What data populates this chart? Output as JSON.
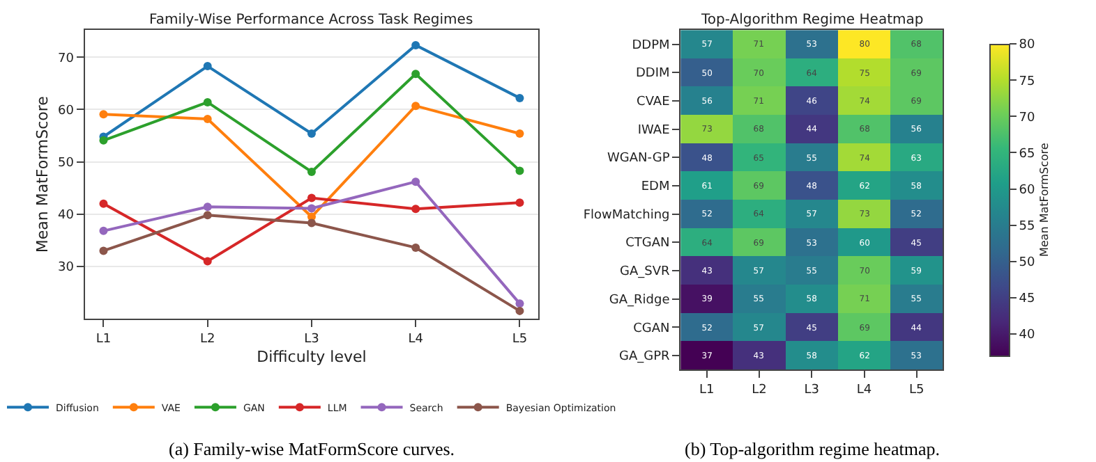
{
  "chart_data": [
    {
      "type": "line",
      "title": "Family-Wise Performance Across Task Regimes",
      "xlabel": "Difficulty level",
      "ylabel": "Mean MatFormScore",
      "categories": [
        "L1",
        "L2",
        "L3",
        "L4",
        "L5"
      ],
      "ylim": [
        20,
        75.2
      ],
      "yticks": [
        30,
        40,
        50,
        60,
        70
      ],
      "grid": "y",
      "legend": "bottom",
      "marker": "circle",
      "line_style": "solid",
      "series": [
        {
          "name": "Diffusion",
          "color": "#1f77b4",
          "values": [
            54.8,
            68.3,
            55.4,
            72.3,
            62.2
          ]
        },
        {
          "name": "VAE",
          "color": "#ff7f0e",
          "values": [
            59.1,
            58.2,
            39.5,
            60.7,
            55.4
          ]
        },
        {
          "name": "GAN",
          "color": "#2ca02c",
          "values": [
            54.1,
            61.4,
            48.1,
            66.8,
            48.3
          ]
        },
        {
          "name": "LLM",
          "color": "#d62728",
          "values": [
            42.0,
            31.0,
            43.1,
            41.0,
            42.2
          ]
        },
        {
          "name": "Search",
          "color": "#9467bd",
          "values": [
            36.8,
            41.4,
            41.1,
            46.2,
            22.9
          ]
        },
        {
          "name": "Bayesian Optimization",
          "color": "#8c564b",
          "values": [
            33.0,
            39.8,
            38.3,
            33.6,
            21.5
          ]
        }
      ],
      "annotations": [
        "(a) Family-wise MatFormScore curves."
      ]
    },
    {
      "type": "heatmap",
      "title": "Top-Algorithm Regime Heatmap",
      "clabel": "Mean MatFormScore",
      "categories": [
        "L1",
        "L2",
        "L3",
        "L4",
        "L5"
      ],
      "y_categories": [
        "DDPM",
        "DDIM",
        "CVAE",
        "IWAE",
        "WGAN-GP",
        "EDM",
        "FlowMatching",
        "CTGAN",
        "GA_SVR",
        "GA_Ridge",
        "CGAN",
        "GA_GPR"
      ],
      "cells": [
        [
          57,
          71,
          53,
          80,
          68
        ],
        [
          50,
          70,
          64,
          75,
          69
        ],
        [
          56,
          71,
          46,
          74,
          69
        ],
        [
          73,
          68,
          44,
          68,
          56
        ],
        [
          48,
          65,
          55,
          74,
          63
        ],
        [
          61,
          69,
          48,
          62,
          58
        ],
        [
          52,
          64,
          57,
          73,
          52
        ],
        [
          64,
          69,
          53,
          60,
          45
        ],
        [
          43,
          57,
          55,
          70,
          59
        ],
        [
          39,
          55,
          58,
          71,
          55
        ],
        [
          52,
          57,
          45,
          69,
          44
        ],
        [
          37,
          43,
          58,
          62,
          53
        ]
      ],
      "clim": [
        37,
        80
      ],
      "cticks": [
        40,
        45,
        50,
        55,
        60,
        65,
        70,
        75,
        80
      ],
      "data_labels": true,
      "annotations": [
        "(b) Top-algorithm regime heatmap."
      ]
    }
  ]
}
